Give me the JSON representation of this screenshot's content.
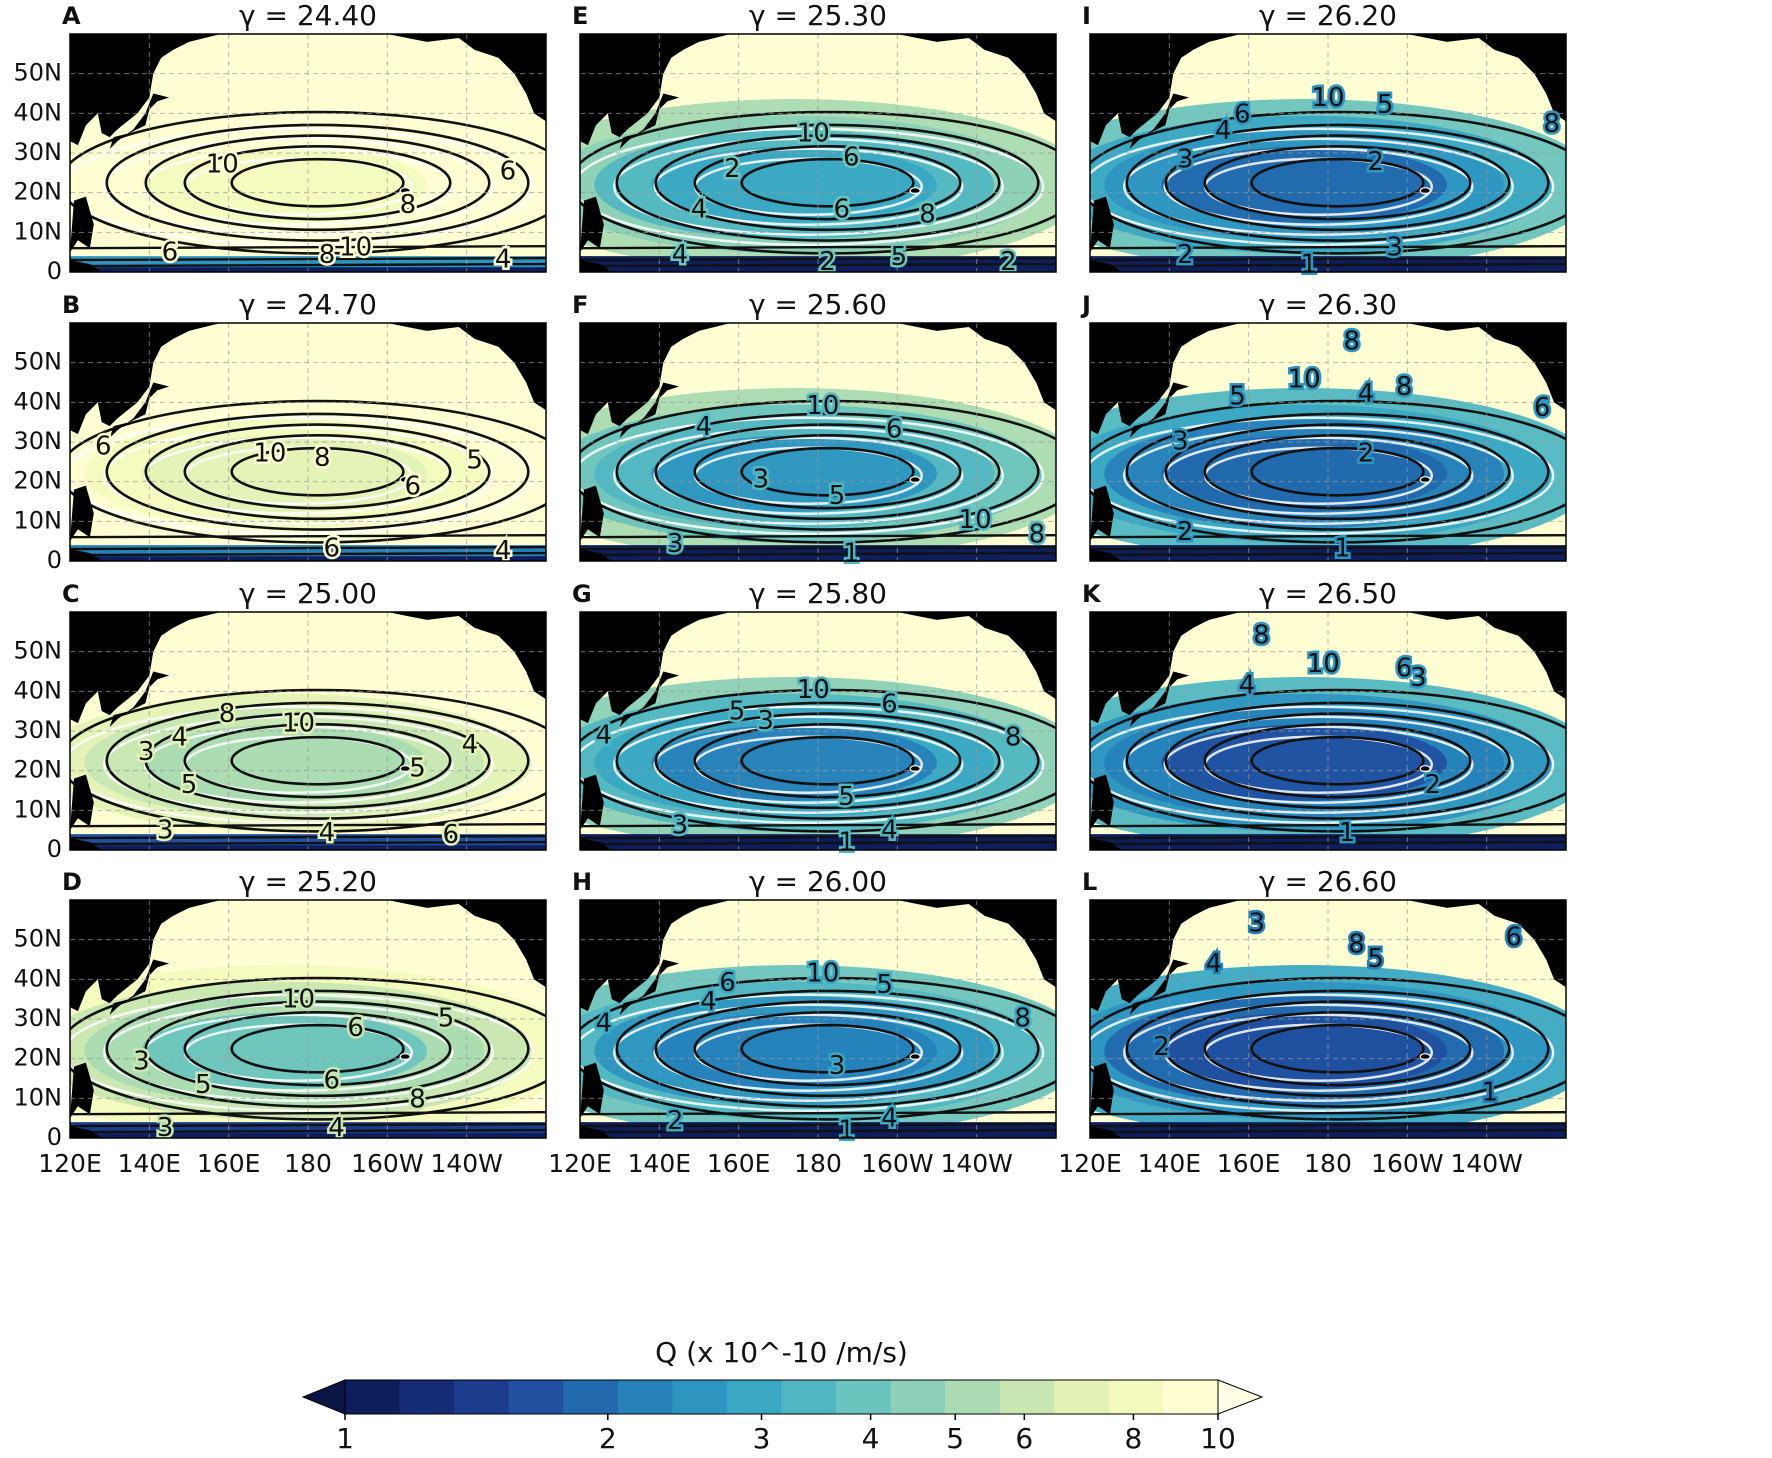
{
  "panels": [
    {
      "letter": "A",
      "title": "γ = 24.40",
      "level": 0.92,
      "contours": [
        [
          "10",
          0.32,
          0.55
        ],
        [
          "8",
          0.71,
          0.72
        ],
        [
          "6",
          0.92,
          0.58
        ],
        [
          "6",
          0.21,
          0.92
        ],
        [
          "10",
          0.6,
          0.9
        ],
        [
          "8",
          0.54,
          0.93
        ],
        [
          "4",
          0.91,
          0.95
        ]
      ]
    },
    {
      "letter": "B",
      "title": "γ = 24.70",
      "level": 0.86,
      "contours": [
        [
          "10",
          0.42,
          0.55
        ],
        [
          "8",
          0.53,
          0.57
        ],
        [
          "6",
          0.72,
          0.69
        ],
        [
          "5",
          0.85,
          0.58
        ],
        [
          "6",
          0.07,
          0.52
        ],
        [
          "6",
          0.55,
          0.95
        ],
        [
          "4",
          0.91,
          0.96
        ]
      ]
    },
    {
      "letter": "C",
      "title": "γ = 25.00",
      "level": 0.7,
      "contours": [
        [
          "8",
          0.33,
          0.43
        ],
        [
          "10",
          0.48,
          0.47
        ],
        [
          "4",
          0.23,
          0.53
        ],
        [
          "3",
          0.16,
          0.59
        ],
        [
          "5",
          0.25,
          0.73
        ],
        [
          "4",
          0.84,
          0.56
        ],
        [
          "5",
          0.73,
          0.66
        ],
        [
          "3",
          0.2,
          0.92
        ],
        [
          "4",
          0.54,
          0.93
        ],
        [
          "6",
          0.8,
          0.94
        ]
      ]
    },
    {
      "letter": "D",
      "title": "γ = 25.20",
      "level": 0.62,
      "contours": [
        [
          "10",
          0.48,
          0.42
        ],
        [
          "6",
          0.6,
          0.54
        ],
        [
          "5",
          0.79,
          0.5
        ],
        [
          "3",
          0.15,
          0.68
        ],
        [
          "5",
          0.28,
          0.78
        ],
        [
          "6",
          0.55,
          0.76
        ],
        [
          "8",
          0.73,
          0.84
        ],
        [
          "3",
          0.2,
          0.96
        ],
        [
          "4",
          0.56,
          0.96
        ]
      ]
    },
    {
      "letter": "E",
      "title": "γ = 25.30",
      "level": 0.45,
      "contours": [
        [
          "10",
          0.49,
          0.42
        ],
        [
          "6",
          0.57,
          0.52
        ],
        [
          "2",
          0.32,
          0.57
        ],
        [
          "4",
          0.25,
          0.74
        ],
        [
          "6",
          0.55,
          0.74
        ],
        [
          "8",
          0.73,
          0.76
        ],
        [
          "4",
          0.21,
          0.93
        ],
        [
          "2",
          0.52,
          0.96
        ],
        [
          "5",
          0.67,
          0.94
        ],
        [
          "2",
          0.9,
          0.96
        ]
      ]
    },
    {
      "letter": "F",
      "title": "γ = 25.60",
      "level": 0.4,
      "contours": [
        [
          "10",
          0.51,
          0.35
        ],
        [
          "6",
          0.66,
          0.45
        ],
        [
          "4",
          0.26,
          0.44
        ],
        [
          "3",
          0.38,
          0.66
        ],
        [
          "5",
          0.54,
          0.73
        ],
        [
          "10",
          0.83,
          0.83
        ],
        [
          "8",
          0.96,
          0.89
        ],
        [
          "3",
          0.2,
          0.93
        ],
        [
          "1",
          0.57,
          0.97
        ]
      ]
    },
    {
      "letter": "G",
      "title": "γ = 25.80",
      "level": 0.36,
      "contours": [
        [
          "10",
          0.49,
          0.33
        ],
        [
          "6",
          0.65,
          0.39
        ],
        [
          "5",
          0.33,
          0.42
        ],
        [
          "3",
          0.39,
          0.46
        ],
        [
          "4",
          0.05,
          0.52
        ],
        [
          "8",
          0.91,
          0.53
        ],
        [
          "5",
          0.56,
          0.78
        ],
        [
          "3",
          0.21,
          0.9
        ],
        [
          "4",
          0.65,
          0.92
        ],
        [
          "1",
          0.56,
          0.97
        ]
      ]
    },
    {
      "letter": "H",
      "title": "γ = 26.00",
      "level": 0.33,
      "contours": [
        [
          "10",
          0.51,
          0.31
        ],
        [
          "5",
          0.64,
          0.36
        ],
        [
          "6",
          0.31,
          0.35
        ],
        [
          "4",
          0.27,
          0.43
        ],
        [
          "4",
          0.05,
          0.52
        ],
        [
          "8",
          0.93,
          0.5
        ],
        [
          "3",
          0.54,
          0.7
        ],
        [
          "4",
          0.65,
          0.92
        ],
        [
          "2",
          0.2,
          0.93
        ],
        [
          "1",
          0.56,
          0.97
        ]
      ]
    },
    {
      "letter": "I",
      "title": "γ = 26.20",
      "level": 0.28,
      "contours": [
        [
          "10",
          0.5,
          0.27
        ],
        [
          "5",
          0.62,
          0.3
        ],
        [
          "6",
          0.32,
          0.34
        ],
        [
          "4",
          0.28,
          0.41
        ],
        [
          "2",
          0.6,
          0.54
        ],
        [
          "3",
          0.2,
          0.53
        ],
        [
          "8",
          0.97,
          0.38
        ],
        [
          "2",
          0.2,
          0.93
        ],
        [
          "3",
          0.64,
          0.9
        ],
        [
          "1",
          0.46,
          0.97
        ]
      ]
    },
    {
      "letter": "J",
      "title": "γ = 26.30",
      "level": 0.25,
      "contours": [
        [
          "8",
          0.55,
          0.08
        ],
        [
          "10",
          0.45,
          0.24
        ],
        [
          "8",
          0.66,
          0.27
        ],
        [
          "5",
          0.31,
          0.31
        ],
        [
          "4",
          0.58,
          0.3
        ],
        [
          "6",
          0.95,
          0.36
        ],
        [
          "3",
          0.19,
          0.5
        ],
        [
          "2",
          0.58,
          0.55
        ],
        [
          "2",
          0.2,
          0.88
        ],
        [
          "1",
          0.53,
          0.95
        ]
      ]
    },
    {
      "letter": "K",
      "title": "γ = 26.50",
      "level": 0.22,
      "contours": [
        [
          "8",
          0.36,
          0.1
        ],
        [
          "10",
          0.49,
          0.22
        ],
        [
          "6",
          0.66,
          0.24
        ],
        [
          "4",
          0.33,
          0.31
        ],
        [
          "3",
          0.69,
          0.28
        ],
        [
          "2",
          0.72,
          0.73
        ],
        [
          "1",
          0.54,
          0.93
        ]
      ]
    },
    {
      "letter": "L",
      "title": "γ = 26.60",
      "level": 0.19,
      "contours": [
        [
          "3",
          0.35,
          0.1
        ],
        [
          "8",
          0.56,
          0.19
        ],
        [
          "6",
          0.89,
          0.16
        ],
        [
          "5",
          0.6,
          0.25
        ],
        [
          "4",
          0.26,
          0.27
        ],
        [
          "2",
          0.15,
          0.62
        ],
        [
          "1",
          0.84,
          0.81
        ]
      ]
    }
  ],
  "axes": {
    "lat_ticks": [
      "0",
      "10N",
      "20N",
      "30N",
      "40N",
      "50N"
    ],
    "lon_ticks": [
      "120E",
      "140E",
      "160E",
      "180",
      "160W",
      "140W"
    ]
  },
  "colorbar": {
    "label": "Q (x 10^-10 /m/s)",
    "tick_labels": [
      "1",
      "2",
      "3",
      "4",
      "5",
      "6",
      "8",
      "10"
    ],
    "colors": [
      "#0e1e5c",
      "#142c73",
      "#1b3c8a",
      "#20509f",
      "#2268ad",
      "#2681b9",
      "#2e95c1",
      "#3aa8c3",
      "#52b7c2",
      "#6bc4bd",
      "#8bd0b7",
      "#aadbb2",
      "#c8e7b2",
      "#e3f2b6",
      "#f4fabe",
      "#ffffd3"
    ]
  }
}
